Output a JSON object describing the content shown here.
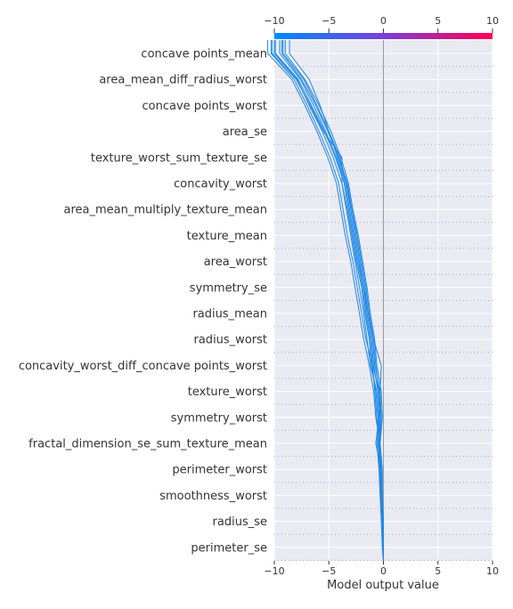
{
  "chart_data": {
    "type": "line",
    "subtype": "shap-decision-plot",
    "xlabel": "Model output value",
    "xlim": [
      -10,
      10
    ],
    "xticks": [
      -10,
      -5,
      0,
      5,
      10
    ],
    "grid": true,
    "colorbar": {
      "position": "top",
      "colors": [
        "#008bfb",
        "#7a3fd8",
        "#ff0051"
      ]
    },
    "line_color": "#1e88e5",
    "base_value": 0,
    "features": [
      "concave points_mean",
      "area_mean_diff_radius_worst",
      "concave points_worst",
      "area_se",
      "texture_worst_sum_texture_se",
      "concavity_worst",
      "area_mean_multiply_texture_mean",
      "texture_mean",
      "area_worst",
      "symmetry_se",
      "radius_mean",
      "radius_worst",
      "concavity_worst_diff_concave points_worst",
      "texture_worst",
      "symmetry_worst",
      "fractal_dimension_se_sum_texture_mean",
      "perimeter_worst",
      "smoothness_worst",
      "radius_se",
      "perimeter_se"
    ],
    "series_note_order": "values listed from bottom (base) to top (final output)",
    "series": [
      {
        "values": [
          0,
          0.0,
          -0.1,
          -0.2,
          -0.3,
          -0.5,
          -0.3,
          -0.4,
          -1.0,
          -1.2,
          -1.6,
          -1.9,
          -2.4,
          -2.8,
          -3.2,
          -3.6,
          -4.4,
          -5.4,
          -6.6,
          -7.8,
          -9.9
        ]
      },
      {
        "values": [
          0,
          -0.1,
          -0.1,
          -0.3,
          -0.2,
          -0.7,
          -0.4,
          -0.6,
          -1.2,
          -1.5,
          -1.8,
          -2.2,
          -2.6,
          -3.0,
          -3.4,
          -3.8,
          -4.6,
          -5.6,
          -6.8,
          -7.9,
          -10.0
        ]
      },
      {
        "values": [
          0,
          0.0,
          0.0,
          -0.1,
          -0.1,
          -0.3,
          -0.2,
          -0.3,
          -0.8,
          -1.0,
          -1.4,
          -1.7,
          -2.1,
          -2.5,
          -2.9,
          -3.3,
          -4.1,
          -5.1,
          -6.2,
          -7.5,
          -9.3
        ]
      },
      {
        "values": [
          0,
          0.0,
          -0.1,
          -0.2,
          -0.4,
          -0.4,
          -0.6,
          -0.8,
          -1.0,
          -1.6,
          -2.0,
          -2.4,
          -2.8,
          -3.3,
          -3.7,
          -4.1,
          -4.9,
          -5.9,
          -7.0,
          -8.2,
          -10.3
        ]
      },
      {
        "values": [
          0,
          0.0,
          0.0,
          -0.1,
          -0.2,
          -0.3,
          -0.1,
          -0.2,
          -0.6,
          -0.8,
          -1.2,
          -1.5,
          -1.9,
          -2.3,
          -2.8,
          -3.2,
          -3.9,
          -4.8,
          -5.9,
          -7.2,
          -9.0
        ]
      },
      {
        "values": [
          0,
          -0.1,
          -0.2,
          -0.3,
          -0.4,
          -0.6,
          -0.5,
          -0.7,
          -1.1,
          -1.3,
          -1.7,
          -2.0,
          -2.5,
          -2.9,
          -3.3,
          -3.8,
          -3.8,
          -5.5,
          -6.7,
          -8.0,
          -10.2
        ]
      },
      {
        "values": [
          0,
          0.0,
          -0.1,
          -0.2,
          -0.3,
          -0.4,
          -0.3,
          -0.5,
          -0.9,
          -1.1,
          -1.5,
          -1.8,
          -2.3,
          -2.7,
          -3.1,
          -3.5,
          -4.3,
          -5.3,
          -6.4,
          -7.6,
          -9.5
        ]
      },
      {
        "values": [
          0,
          0.0,
          0.0,
          -0.1,
          -0.2,
          -0.5,
          -0.4,
          -0.3,
          -0.2,
          -0.9,
          -1.3,
          -1.6,
          -2.0,
          -2.4,
          -2.9,
          -3.4,
          -4.0,
          -5.0,
          -6.1,
          -7.3,
          -9.2
        ]
      },
      {
        "values": [
          0,
          0.0,
          -0.1,
          -0.2,
          -0.3,
          -0.3,
          -0.7,
          -0.9,
          -1.3,
          -1.8,
          -2.2,
          -2.6,
          -3.0,
          -3.5,
          -3.9,
          -4.3,
          -5.1,
          -6.1,
          -7.2,
          -8.4,
          -10.6
        ]
      },
      {
        "values": [
          0,
          -0.1,
          -0.1,
          -0.2,
          -0.2,
          -0.4,
          -0.2,
          -0.4,
          -0.7,
          -0.9,
          -1.4,
          -1.8,
          -2.2,
          -2.6,
          -3.0,
          -3.4,
          -4.2,
          -5.0,
          -5.8,
          -6.8,
          -8.6
        ]
      }
    ]
  }
}
